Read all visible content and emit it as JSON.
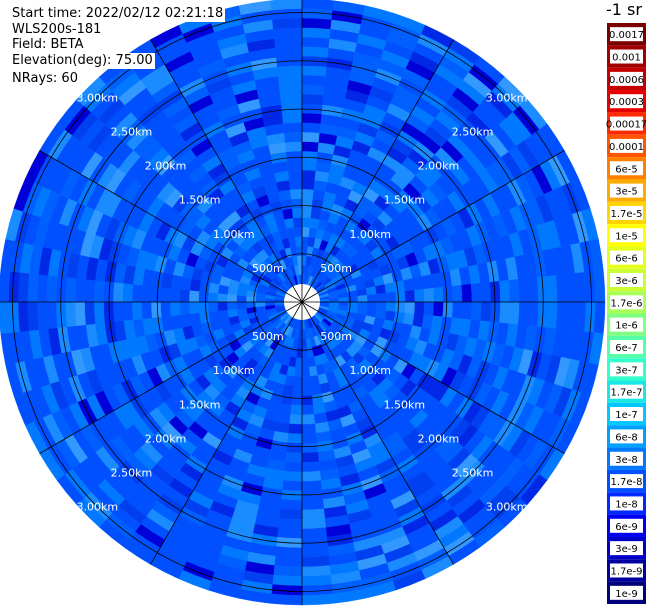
{
  "info": {
    "start_time": "Start time: 2022/02/12 02:21:18",
    "station": "WLS200s-181",
    "field": "Field: BETA",
    "elevation": "Elevation(deg): 75.00",
    "nrays": "NRays: 60"
  },
  "colorbar": {
    "unit": "-1 sr",
    "labels": [
      "0.0017",
      "0.001",
      "0.0006",
      "0.0003",
      "0.00017",
      "0.0001",
      "6e-5",
      "3e-5",
      "1.7e-5",
      "1e-5",
      "6e-6",
      "3e-6",
      "1.7e-6",
      "1e-6",
      "6e-7",
      "3e-7",
      "1.7e-7",
      "1e-7",
      "6e-8",
      "3e-8",
      "1.7e-8",
      "1e-8",
      "6e-9",
      "3e-9",
      "1.7e-9",
      "1e-9"
    ],
    "colors": [
      "#7a0000",
      "#a00000",
      "#c40000",
      "#e60000",
      "#ff2a00",
      "#ff5500",
      "#ff8000",
      "#ffaa00",
      "#ffd400",
      "#ffff00",
      "#e6ff1a",
      "#ccff33",
      "#a8ff57",
      "#80ff80",
      "#57ffa8",
      "#33ffcc",
      "#1ae6e6",
      "#00c8ff",
      "#00a0ff",
      "#0078ff",
      "#0050ff",
      "#0028ff",
      "#0000f0",
      "#0000c8",
      "#0000a0",
      "#000078"
    ]
  },
  "chart_data": {
    "type": "heatmap",
    "projection": "polar PPI",
    "field": "BETA",
    "nrays": 60,
    "range_rings_km": [
      0.5,
      1.0,
      1.5,
      2.0,
      2.5,
      3.0
    ],
    "ring_labels": [
      "500m",
      "1.00km",
      "1.50km",
      "2.00km",
      "2.50km",
      "3.00km"
    ],
    "spoke_count": 12,
    "value_range": [
      1e-09,
      0.0017
    ],
    "dominant_values_approx": [
      "1e-8",
      "6e-8",
      "1e-7"
    ]
  }
}
